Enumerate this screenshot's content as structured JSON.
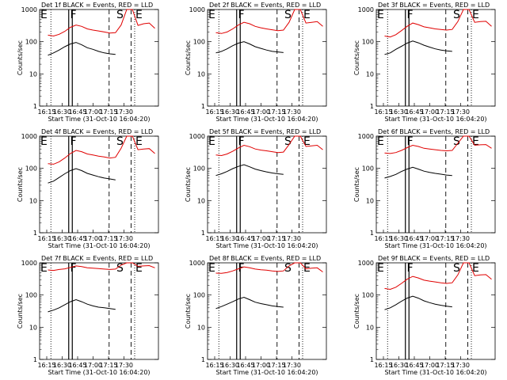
{
  "chart_data": [
    {
      "type": "line",
      "title": "Det 1f BLACK = Events, RED = LLD",
      "xlabel": "Start Time (31-Oct-10 16:04:20)",
      "ylabel": "Counts/sec",
      "yscale": "log",
      "ylim": [
        1,
        1000
      ],
      "x_ticks": [
        "16:15",
        "16:30",
        "16:45",
        "17:00",
        "17:15",
        "17:30"
      ],
      "y_ticks": [
        "1",
        "10",
        "100",
        "1000"
      ],
      "markers": [
        "E",
        "F",
        "S",
        "E"
      ],
      "series": [
        {
          "color": "#e00000",
          "values": [
            160,
            150,
            170,
            210,
            280,
            330,
            300,
            250,
            230,
            215,
            200,
            185,
            190,
            330,
            1000,
            1000,
            320,
            360,
            380,
            260
          ]
        },
        {
          "color": "#000000",
          "values": [
            38,
            45,
            55,
            70,
            85,
            95,
            80,
            65,
            58,
            50,
            45,
            42,
            40,
            null,
            null,
            null,
            null,
            null,
            null,
            null
          ]
        }
      ]
    },
    {
      "type": "line",
      "title": "Det 2f BLACK = Events, RED = LLD",
      "xlabel": "Start Time (31-Oct-10 16:04:20)",
      "ylabel": "Counts/sec",
      "yscale": "log",
      "ylim": [
        1,
        1000
      ],
      "x_ticks": [
        "16:15",
        "16:30",
        "16:45",
        "17:00",
        "17:15",
        "17:30"
      ],
      "y_ticks": [
        "1",
        "10",
        "100",
        "1000"
      ],
      "markers": [
        "E",
        "F",
        "S",
        "E"
      ],
      "series": [
        {
          "color": "#e00000",
          "values": [
            190,
            180,
            200,
            250,
            330,
            400,
            360,
            300,
            270,
            250,
            235,
            220,
            230,
            400,
            1000,
            1000,
            380,
            400,
            420,
            300
          ]
        },
        {
          "color": "#000000",
          "values": [
            45,
            50,
            60,
            75,
            90,
            100,
            85,
            70,
            62,
            55,
            50,
            48,
            46,
            null,
            null,
            null,
            null,
            null,
            null,
            null
          ]
        }
      ]
    },
    {
      "type": "line",
      "title": "Det 3f BLACK = Events, RED = LLD",
      "xlabel": "Start Time (31-Oct-10 16:04:20)",
      "ylabel": "Counts/sec",
      "yscale": "log",
      "ylim": [
        1,
        1000
      ],
      "x_ticks": [
        "16:15",
        "16:30",
        "16:45",
        "17:00",
        "17:15",
        "17:30"
      ],
      "y_ticks": [
        "1",
        "10",
        "100",
        "1000"
      ],
      "markers": [
        "E",
        "F",
        "S",
        "E"
      ],
      "series": [
        {
          "color": "#e00000",
          "values": [
            150,
            140,
            165,
            220,
            300,
            380,
            340,
            290,
            270,
            250,
            240,
            230,
            240,
            420,
            1000,
            1000,
            400,
            420,
            430,
            300
          ]
        },
        {
          "color": "#000000",
          "values": [
            40,
            45,
            58,
            72,
            90,
            105,
            92,
            78,
            68,
            60,
            55,
            52,
            50,
            null,
            null,
            null,
            null,
            null,
            null,
            null
          ]
        }
      ]
    },
    {
      "type": "line",
      "title": "Det 4f BLACK = Events, RED = LLD",
      "xlabel": "Start Time (31-Oct-10 16:04:20)",
      "ylabel": "Counts/sec",
      "yscale": "log",
      "ylim": [
        1,
        1000
      ],
      "x_ticks": [
        "16:15",
        "16:30",
        "16:45",
        "17:00",
        "17:15",
        "17:30"
      ],
      "y_ticks": [
        "1",
        "10",
        "100",
        "1000"
      ],
      "markers": [
        "E",
        "F",
        "S",
        "E"
      ],
      "series": [
        {
          "color": "#e00000",
          "values": [
            140,
            135,
            160,
            210,
            290,
            360,
            330,
            280,
            260,
            240,
            225,
            210,
            220,
            420,
            1000,
            1000,
            380,
            400,
            410,
            290
          ]
        },
        {
          "color": "#000000",
          "values": [
            35,
            40,
            52,
            68,
            85,
            98,
            85,
            70,
            62,
            55,
            50,
            47,
            44,
            null,
            null,
            null,
            null,
            null,
            null,
            null
          ]
        }
      ]
    },
    {
      "type": "line",
      "title": "Det 5f BLACK = Events, RED = LLD",
      "xlabel": "Start Time (31-Oct-10 16:04:20)",
      "ylabel": "Counts/sec",
      "yscale": "log",
      "ylim": [
        1,
        1000
      ],
      "x_ticks": [
        "16:15",
        "16:30",
        "16:45",
        "17:00",
        "17:15",
        "17:30"
      ],
      "y_ticks": [
        "1",
        "10",
        "100",
        "1000"
      ],
      "markers": [
        "E",
        "F",
        "S",
        "E"
      ],
      "series": [
        {
          "color": "#e00000",
          "values": [
            260,
            250,
            280,
            340,
            430,
            520,
            470,
            400,
            370,
            350,
            330,
            310,
            320,
            550,
            1000,
            1000,
            480,
            500,
            520,
            380
          ]
        },
        {
          "color": "#000000",
          "values": [
            60,
            68,
            80,
            98,
            115,
            130,
            112,
            95,
            85,
            78,
            72,
            68,
            65,
            null,
            null,
            null,
            null,
            null,
            null,
            null
          ]
        }
      ]
    },
    {
      "type": "line",
      "title": "Det 6f BLACK = Events, RED = LLD",
      "xlabel": "Start Time (31-Oct-10 16:04:20)",
      "ylabel": "Counts/sec",
      "yscale": "log",
      "ylim": [
        1,
        1000
      ],
      "x_ticks": [
        "16:15",
        "16:30",
        "16:45",
        "17:00",
        "17:15",
        "17:30"
      ],
      "y_ticks": [
        "1",
        "10",
        "100",
        "1000"
      ],
      "markers": [
        "E",
        "F",
        "S",
        "E"
      ],
      "series": [
        {
          "color": "#e00000",
          "values": [
            300,
            290,
            310,
            360,
            440,
            520,
            480,
            420,
            400,
            380,
            360,
            350,
            360,
            600,
            1000,
            1000,
            520,
            540,
            550,
            420
          ]
        },
        {
          "color": "#000000",
          "values": [
            50,
            56,
            65,
            80,
            95,
            108,
            95,
            82,
            75,
            70,
            66,
            62,
            60,
            null,
            null,
            null,
            null,
            null,
            null,
            null
          ]
        }
      ]
    },
    {
      "type": "line",
      "title": "Det 7f BLACK = Events, RED = LLD",
      "xlabel": "Start Time (31-Oct-10 16:04:20)",
      "ylabel": "Counts/sec",
      "yscale": "log",
      "ylim": [
        1,
        1000
      ],
      "x_ticks": [
        "16:15",
        "16:30",
        "16:45",
        "17:00",
        "17:15",
        "17:30"
      ],
      "y_ticks": [
        "1",
        "10",
        "100",
        "1000"
      ],
      "markers": [
        "E",
        "F",
        "S",
        "E"
      ],
      "series": [
        {
          "color": "#e00000",
          "values": [
            600,
            580,
            620,
            650,
            720,
            800,
            760,
            700,
            680,
            660,
            640,
            620,
            640,
            850,
            1000,
            1000,
            780,
            800,
            820,
            700
          ]
        },
        {
          "color": "#000000",
          "values": [
            30,
            34,
            40,
            50,
            62,
            72,
            62,
            52,
            46,
            42,
            40,
            38,
            36,
            null,
            null,
            null,
            null,
            null,
            null,
            null
          ]
        }
      ]
    },
    {
      "type": "line",
      "title": "Det 8f BLACK = Events, RED = LLD",
      "xlabel": "Start Time (31-Oct-10 16:04:20)",
      "ylabel": "Counts/sec",
      "yscale": "log",
      "ylim": [
        1,
        1000
      ],
      "x_ticks": [
        "16:15",
        "16:30",
        "16:45",
        "17:00",
        "17:15",
        "17:30"
      ],
      "y_ticks": [
        "1",
        "10",
        "100",
        "1000"
      ],
      "markers": [
        "E",
        "F",
        "S",
        "E"
      ],
      "series": [
        {
          "color": "#e00000",
          "values": [
            480,
            470,
            500,
            560,
            650,
            750,
            700,
            640,
            610,
            590,
            560,
            540,
            560,
            800,
            1000,
            1000,
            650,
            680,
            700,
            520
          ]
        },
        {
          "color": "#000000",
          "values": [
            38,
            44,
            52,
            62,
            75,
            85,
            72,
            60,
            54,
            50,
            46,
            44,
            42,
            null,
            null,
            null,
            null,
            null,
            null,
            null
          ]
        }
      ]
    },
    {
      "type": "line",
      "title": "Det 9f BLACK = Events, RED = LLD",
      "xlabel": "Start Time (31-Oct-10 16:04:20)",
      "ylabel": "Counts/sec",
      "yscale": "log",
      "ylim": [
        1,
        1000
      ],
      "x_ticks": [
        "16:15",
        "16:30",
        "16:45",
        "17:00",
        "17:15",
        "17:30"
      ],
      "y_ticks": [
        "1",
        "10",
        "100",
        "1000"
      ],
      "markers": [
        "E",
        "F",
        "S",
        "E"
      ],
      "series": [
        {
          "color": "#e00000",
          "values": [
            160,
            150,
            175,
            230,
            310,
            380,
            340,
            290,
            270,
            255,
            240,
            230,
            240,
            420,
            1000,
            1000,
            400,
            420,
            430,
            310
          ]
        },
        {
          "color": "#000000",
          "values": [
            35,
            40,
            50,
            64,
            80,
            92,
            80,
            66,
            58,
            52,
            48,
            45,
            43,
            null,
            null,
            null,
            null,
            null,
            null,
            null
          ]
        }
      ]
    }
  ]
}
